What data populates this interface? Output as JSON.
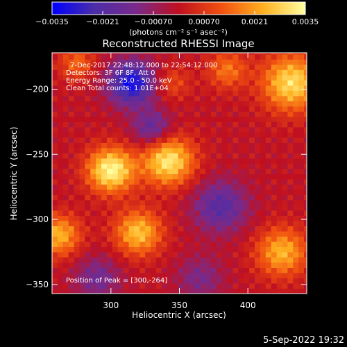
{
  "chart_data": {
    "type": "heatmap",
    "title": "Reconstructed RHESSI Image",
    "xlabel": "Heliocentric X (arcsec)",
    "ylabel": "Heliocentric Y (arcsec)",
    "xlim": [
      257,
      443
    ],
    "ylim": [
      -357,
      -172
    ],
    "x_ticks": [
      300,
      350,
      400
    ],
    "y_ticks": [
      -350,
      -300,
      -250,
      -200
    ],
    "colorbar": {
      "range": [
        -0.0035,
        0.0035
      ],
      "ticks": [
        "-0.0035",
        "-0.0021",
        "-0.00070",
        "0.00070",
        "0.0021",
        "0.0035"
      ],
      "unit_label": "(photons cm⁻² s⁻¹ asec⁻²)",
      "colormap_stops": [
        "#0000ff",
        "#4b2ea8",
        "#7a2a8a",
        "#c01020",
        "#f05010",
        "#ffb020",
        "#ffffa0"
      ]
    },
    "annotations": [
      "7-Dec-2017 22:48:12.000 to 22:54:12.000",
      "Detectors: 3F 6F 8F, Att 0",
      "Energy Range: 25.0 - 50.0 keV",
      "Clean    Total counts: 1.01E+04",
      "Position of Peak = [300,-264]"
    ],
    "sources": [
      {
        "x": 300,
        "y": -262,
        "amplitude": 0.0035,
        "sigma": 12
      },
      {
        "x": 342,
        "y": -255,
        "amplitude": 0.0032,
        "sigma": 13
      },
      {
        "x": 320,
        "y": -310,
        "amplitude": 0.0026,
        "sigma": 12
      },
      {
        "x": 432,
        "y": -195,
        "amplitude": 0.003,
        "sigma": 15
      },
      {
        "x": 262,
        "y": -312,
        "amplitude": 0.0024,
        "sigma": 11
      },
      {
        "x": 425,
        "y": -325,
        "amplitude": 0.0024,
        "sigma": 13
      },
      {
        "x": 275,
        "y": -180,
        "amplitude": 0.0014,
        "sigma": 9
      },
      {
        "x": 385,
        "y": -185,
        "amplitude": 0.0016,
        "sigma": 10
      },
      {
        "x": 345,
        "y": -195,
        "amplitude": 0.001,
        "sigma": 9
      },
      {
        "x": 315,
        "y": -195,
        "amplitude": -0.0032,
        "sigma": 12
      },
      {
        "x": 380,
        "y": -290,
        "amplitude": -0.002,
        "sigma": 14
      },
      {
        "x": 330,
        "y": -230,
        "amplitude": -0.0018,
        "sigma": 10
      },
      {
        "x": 290,
        "y": -345,
        "amplitude": -0.0014,
        "sigma": 12
      },
      {
        "x": 365,
        "y": -345,
        "amplitude": -0.0012,
        "sigma": 12
      }
    ],
    "peak": {
      "x": 300,
      "y": -264
    }
  },
  "footer": {
    "timestamp": "5-Sep-2022 19:32"
  }
}
